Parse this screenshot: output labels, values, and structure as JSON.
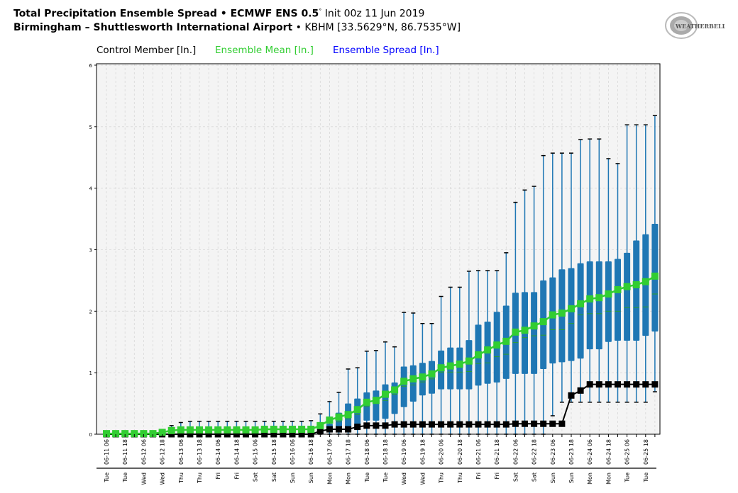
{
  "header": {
    "title_bold": "Total Precipitation Ensemble Spread • ECMWF ENS 0.5",
    "title_deg": "°",
    "title_init": " Init 00z 11 Jun 2019",
    "subtitle_bold": "Birmingham – Shuttlesworth International Airport",
    "subtitle_rest": " • KBHM [33.5629°N, 86.7535°W]",
    "logo_text": "WeatherBELL Analytics LLC"
  },
  "colors": {
    "control": "#000000",
    "mean": "#32cd32",
    "spread": "#1f77b4",
    "spread_legend": "#0000ff"
  },
  "chart_data": {
    "type": "box",
    "title": "Total Precipitation Ensemble Spread",
    "ylim": [
      0,
      6
    ],
    "yticks": [
      0,
      1,
      2,
      3,
      4,
      5,
      6
    ],
    "grid": true,
    "legend_position": "top",
    "legend": [
      "Control Member [In.]",
      "Ensemble Mean [In.]",
      "Ensemble Spread [In.]"
    ],
    "tick_labels": [
      "06-11 06",
      "06-11 18",
      "06-12 06",
      "06-12 18",
      "06-13 06",
      "06-13 18",
      "06-14 06",
      "06-14 18",
      "06-15 06",
      "06-15 18",
      "06-16 06",
      "06-16 18",
      "06-17 06",
      "06-17 18",
      "06-18 06",
      "06-18 18",
      "06-19 06",
      "06-19 18",
      "06-20 06",
      "06-20 18",
      "06-21 06",
      "06-21 18",
      "06-22 06",
      "06-22 18",
      "06-23 06",
      "06-23 18",
      "06-24 06",
      "06-24 18",
      "06-25 06",
      "06-25 18"
    ],
    "day_labels": [
      "Tue",
      "Tue",
      "Wed",
      "Wed",
      "Thu",
      "Thu",
      "Fri",
      "Fri",
      "Sat",
      "Sat",
      "Sun",
      "Sun",
      "Mon",
      "Mon",
      "Tue",
      "Tue",
      "Wed",
      "Wed",
      "Thu",
      "Thu",
      "Fri",
      "Fri",
      "Sat",
      "Sat",
      "Sun",
      "Sun",
      "Mon",
      "Mon",
      "Tue",
      "Tue"
    ],
    "control": [
      0,
      0,
      0,
      0,
      0,
      0,
      0,
      0,
      0,
      0,
      0,
      0,
      0,
      0,
      0,
      0,
      0,
      0,
      0,
      0,
      0,
      0,
      0,
      0.05,
      0.08,
      0.08,
      0.08,
      0.12,
      0.14,
      0.14,
      0.14,
      0.16,
      0.16,
      0.16,
      0.16,
      0.16,
      0.16,
      0.16,
      0.16,
      0.16,
      0.16,
      0.16,
      0.16,
      0.16,
      0.17,
      0.17,
      0.17,
      0.17,
      0.17,
      0.17,
      0.63,
      0.71,
      0.81,
      0.81,
      0.81,
      0.81,
      0.81,
      0.81,
      0.81,
      0.81
    ],
    "mean": [
      0.01,
      0.01,
      0.01,
      0.01,
      0.01,
      0.01,
      0.03,
      0.06,
      0.07,
      0.07,
      0.07,
      0.07,
      0.07,
      0.07,
      0.07,
      0.07,
      0.07,
      0.08,
      0.08,
      0.08,
      0.08,
      0.08,
      0.08,
      0.14,
      0.23,
      0.28,
      0.32,
      0.4,
      0.52,
      0.55,
      0.65,
      0.72,
      0.86,
      0.9,
      0.93,
      0.98,
      1.08,
      1.11,
      1.14,
      1.19,
      1.29,
      1.37,
      1.45,
      1.51,
      1.66,
      1.69,
      1.76,
      1.83,
      1.94,
      1.97,
      2.04,
      2.12,
      2.2,
      2.22,
      2.28,
      2.35,
      2.4,
      2.43,
      2.48,
      2.57
    ],
    "max": [
      0.03,
      0.03,
      0.03,
      0.03,
      0.03,
      0.03,
      0.05,
      0.14,
      0.19,
      0.21,
      0.21,
      0.21,
      0.21,
      0.21,
      0.21,
      0.21,
      0.21,
      0.21,
      0.21,
      0.21,
      0.21,
      0.21,
      0.22,
      0.33,
      0.53,
      0.68,
      1.06,
      1.08,
      1.35,
      1.36,
      1.5,
      1.42,
      1.98,
      1.97,
      1.8,
      1.8,
      2.24,
      2.39,
      2.39,
      2.65,
      2.66,
      2.66,
      2.66,
      2.95,
      3.77,
      3.97,
      4.03,
      4.53,
      4.57,
      4.57,
      4.57,
      4.79,
      4.8,
      4.8,
      4.48,
      4.4,
      5.03,
      5.03,
      5.03,
      5.18
    ],
    "q3": [
      0.02,
      0.02,
      0.02,
      0.02,
      0.02,
      0.02,
      0.02,
      0.1,
      0.1,
      0.1,
      0.1,
      0.1,
      0.1,
      0.1,
      0.1,
      0.1,
      0.1,
      0.1,
      0.1,
      0.1,
      0.1,
      0.1,
      0.1,
      0.12,
      0.17,
      0.35,
      0.5,
      0.58,
      0.68,
      0.71,
      0.81,
      0.84,
      1.1,
      1.12,
      1.16,
      1.19,
      1.36,
      1.41,
      1.41,
      1.53,
      1.78,
      1.83,
      1.99,
      2.09,
      2.3,
      2.31,
      2.31,
      2.5,
      2.55,
      2.68,
      2.7,
      2.78,
      2.81,
      2.81,
      2.81,
      2.85,
      2.95,
      3.15,
      3.25,
      3.42
    ],
    "median": [
      0.01,
      0.01,
      0.01,
      0.01,
      0.01,
      0.01,
      0.02,
      0.04,
      0.05,
      0.05,
      0.05,
      0.05,
      0.05,
      0.05,
      0.05,
      0.05,
      0.05,
      0.05,
      0.05,
      0.05,
      0.05,
      0.05,
      0.05,
      0.06,
      0.1,
      0.2,
      0.25,
      0.32,
      0.45,
      0.5,
      0.55,
      0.65,
      0.78,
      0.8,
      0.85,
      0.9,
      1.01,
      1.01,
      1.01,
      1.02,
      1.15,
      1.16,
      1.26,
      1.3,
      1.49,
      1.57,
      1.6,
      1.61,
      1.7,
      1.7,
      1.8,
      1.94,
      1.96,
      1.96,
      2.0,
      2.0,
      2.06,
      2.06,
      2.07,
      2.28
    ],
    "q1": [
      0,
      0,
      0,
      0,
      0,
      0,
      0,
      0,
      0,
      0,
      0,
      0,
      0,
      0,
      0,
      0,
      0,
      0,
      0,
      0,
      0,
      0,
      0,
      0.01,
      0.03,
      0.03,
      0.03,
      0.07,
      0.22,
      0.22,
      0.25,
      0.33,
      0.44,
      0.53,
      0.63,
      0.66,
      0.73,
      0.73,
      0.73,
      0.73,
      0.79,
      0.82,
      0.84,
      0.9,
      0.98,
      0.98,
      0.98,
      1.06,
      1.15,
      1.17,
      1.19,
      1.23,
      1.38,
      1.38,
      1.5,
      1.52,
      1.52,
      1.52,
      1.6,
      1.67
    ],
    "min": [
      0,
      0,
      0,
      0,
      0,
      0,
      0,
      0,
      0,
      0,
      0,
      0,
      0,
      0,
      0,
      0,
      0,
      0,
      0,
      0,
      0,
      0,
      0,
      0,
      0,
      0,
      0,
      0,
      0,
      0,
      0,
      0,
      0,
      0,
      0,
      0,
      0,
      0,
      0,
      0,
      0,
      0,
      0,
      0,
      0,
      0,
      0,
      0,
      0.3,
      0.52,
      0.52,
      0.52,
      0.52,
      0.52,
      0.52,
      0.52,
      0.52,
      0.52,
      0.52,
      0.69
    ]
  }
}
